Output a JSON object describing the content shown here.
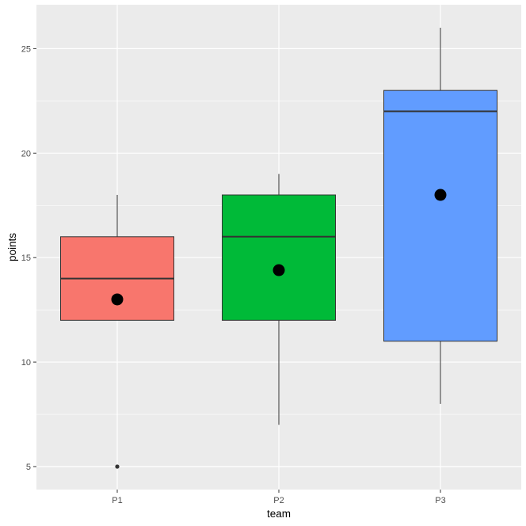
{
  "chart_data": {
    "type": "box",
    "xlabel": "team",
    "ylabel": "points",
    "ylim": [
      3.9,
      27.1
    ],
    "yticks": [
      5,
      10,
      15,
      20,
      25
    ],
    "grid": true,
    "categories": [
      "P1",
      "P2",
      "P3"
    ],
    "boxes": [
      {
        "category": "P1",
        "whisker_low": 12,
        "q1": 12,
        "median": 14,
        "q3": 16,
        "whisker_high": 18,
        "mean": 13.0,
        "outliers": [
          5
        ],
        "color": "#F8766D"
      },
      {
        "category": "P2",
        "whisker_low": 7,
        "q1": 12,
        "median": 16,
        "q3": 18,
        "whisker_high": 19,
        "mean": 14.4,
        "outliers": [],
        "color": "#00BA38"
      },
      {
        "category": "P3",
        "whisker_low": 8,
        "q1": 11,
        "median": 22,
        "q3": 23,
        "whisker_high": 26,
        "mean": 18.0,
        "outliers": [],
        "color": "#619CFF"
      }
    ],
    "colors": {
      "panel_background": "#EBEBEB",
      "grid_line": "#FFFFFF",
      "box_outline": "#333333",
      "mean_point": "#000000"
    }
  }
}
